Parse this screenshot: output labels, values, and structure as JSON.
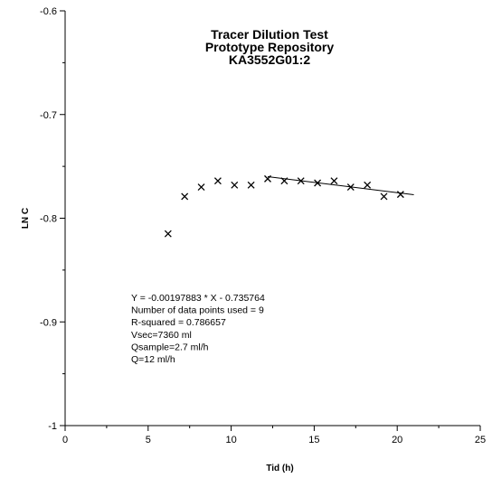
{
  "chart_data": {
    "type": "scatter",
    "title": [
      "Tracer Dilution Test",
      "Prototype Repository",
      "KA3552G01:2"
    ],
    "xlabel": "Tid (h)",
    "ylabel": "LN C",
    "xlim": [
      0,
      25
    ],
    "ylim": [
      -1,
      -0.6
    ],
    "x_ticks": [
      "0",
      "5",
      "10",
      "15",
      "20",
      "25"
    ],
    "y_ticks": [
      "-0.6",
      "-0.7",
      "-0.8",
      "-0.9",
      "-1"
    ],
    "x_tick_values": [
      0,
      5,
      10,
      15,
      20,
      25
    ],
    "y_tick_values": [
      -0.6,
      -0.7,
      -0.8,
      -0.9,
      -1
    ],
    "grid": false,
    "series": [
      {
        "marker": "x",
        "color": "#000000",
        "points": [
          {
            "x": 6.2,
            "y": -0.815
          },
          {
            "x": 7.2,
            "y": -0.779
          },
          {
            "x": 8.2,
            "y": -0.77
          },
          {
            "x": 9.2,
            "y": -0.764
          },
          {
            "x": 10.2,
            "y": -0.768
          },
          {
            "x": 11.2,
            "y": -0.768
          },
          {
            "x": 12.2,
            "y": -0.762
          },
          {
            "x": 13.2,
            "y": -0.764
          },
          {
            "x": 14.2,
            "y": -0.764
          },
          {
            "x": 15.2,
            "y": -0.766
          },
          {
            "x": 16.2,
            "y": -0.764
          },
          {
            "x": 17.2,
            "y": -0.77
          },
          {
            "x": 18.2,
            "y": -0.768
          },
          {
            "x": 19.2,
            "y": -0.779
          },
          {
            "x": 20.2,
            "y": -0.777
          }
        ]
      }
    ],
    "fit_line": {
      "slope": -0.00197883,
      "intercept": -0.735764,
      "x_range": [
        12.2,
        21
      ]
    },
    "annotations": [
      "Y = -0.00197883 * X - 0.735764",
      "Number of data points used = 9",
      "R-squared = 0.786657",
      "Vsec=7360  ml",
      "Qsample=2.7 ml/h",
      "Q=12 ml/h"
    ]
  }
}
